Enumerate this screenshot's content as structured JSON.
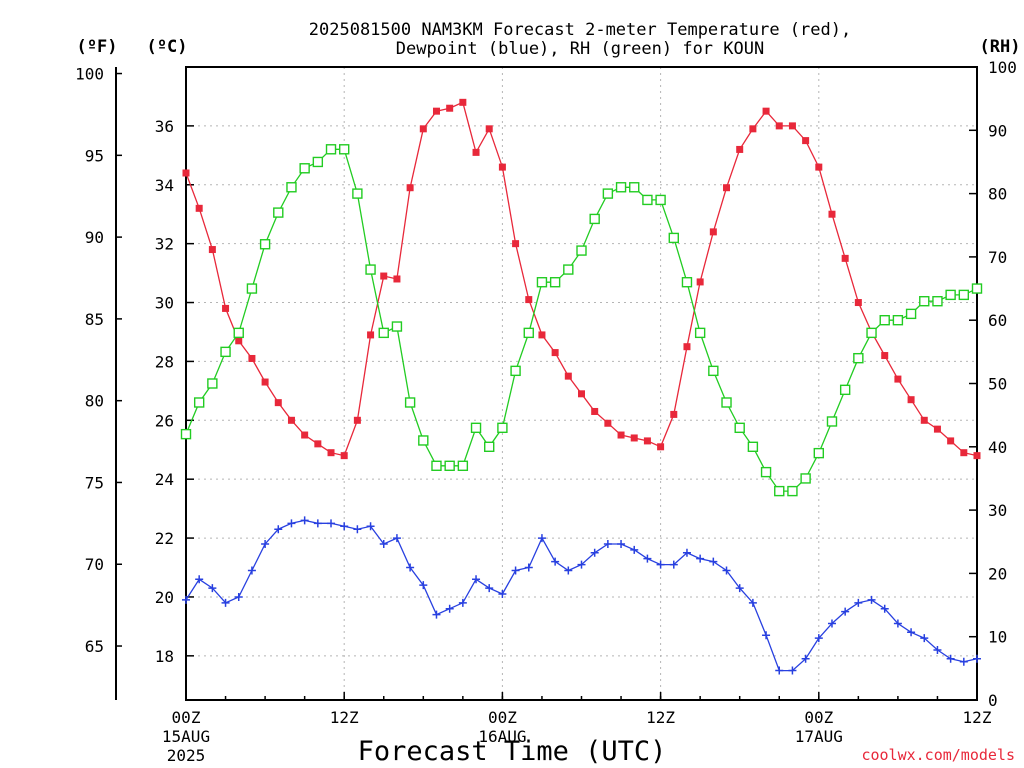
{
  "chart_data": {
    "type": "line",
    "title": "2025081500 NAM3KM Forecast 2-meter Temperature (red),",
    "subtitle": "Dewpoint (blue), RH (green) for KOUN",
    "xlabel": "Forecast Time (UTC)",
    "credit": "coolwx.com/models",
    "units": {
      "fahrenheit": "(ºF)",
      "celsius": "(ºC)",
      "rh": "(RH)"
    },
    "x_range_hours": [
      0,
      60
    ],
    "x_ticks": [
      {
        "hour": 0,
        "label": "00Z",
        "sub": "15AUG",
        "sub2": "2025"
      },
      {
        "hour": 12,
        "label": "12Z",
        "sub": "",
        "sub2": ""
      },
      {
        "hour": 24,
        "label": "00Z",
        "sub": "16AUG",
        "sub2": ""
      },
      {
        "hour": 36,
        "label": "12Z",
        "sub": "",
        "sub2": ""
      },
      {
        "hour": 48,
        "label": "00Z",
        "sub": "17AUG",
        "sub2": ""
      },
      {
        "hour": 60,
        "label": "12Z",
        "sub": "",
        "sub2": ""
      }
    ],
    "celsius_axis": {
      "range": [
        16.5,
        38
      ],
      "ticks": [
        "18",
        "20",
        "22",
        "24",
        "26",
        "28",
        "30",
        "32",
        "34",
        "36"
      ]
    },
    "fahrenheit_axis": {
      "range": [
        61.7,
        100.4
      ],
      "ticks": [
        "65",
        "70",
        "75",
        "80",
        "85",
        "90",
        "95",
        "100"
      ]
    },
    "rh_axis": {
      "range": [
        0,
        100
      ],
      "ticks": [
        "0",
        "10",
        "20",
        "30",
        "40",
        "50",
        "60",
        "70",
        "80",
        "90",
        "100"
      ]
    },
    "series": [
      {
        "name": "Temperature (red)",
        "color": "#e8283a",
        "marker": "filled-square",
        "axis": "celsius",
        "values": [
          34.4,
          33.2,
          31.8,
          29.8,
          28.7,
          28.1,
          27.3,
          26.6,
          26.0,
          25.5,
          25.2,
          24.9,
          24.8,
          26.0,
          28.9,
          30.9,
          30.8,
          33.9,
          35.9,
          36.5,
          36.6,
          36.8,
          35.1,
          35.9,
          34.6,
          32.0,
          30.1,
          28.9,
          28.3,
          27.5,
          26.9,
          26.3,
          25.9,
          25.5,
          25.4,
          25.3,
          25.1,
          26.2,
          28.5,
          30.7,
          32.4,
          33.9,
          35.2,
          35.9,
          36.5,
          36.0,
          36.0,
          35.5,
          34.6,
          33.0,
          31.5,
          30.0,
          29.0,
          28.2,
          27.4,
          26.7,
          26.0,
          25.7,
          25.3,
          24.9,
          24.8
        ]
      },
      {
        "name": "Dewpoint (blue)",
        "color": "#2840e0",
        "marker": "plus",
        "axis": "celsius",
        "values": [
          19.9,
          20.6,
          20.3,
          19.8,
          20.0,
          20.9,
          21.8,
          22.3,
          22.5,
          22.6,
          22.5,
          22.5,
          22.4,
          22.3,
          22.4,
          21.8,
          22.0,
          21.0,
          20.4,
          19.4,
          19.6,
          19.8,
          20.6,
          20.3,
          20.1,
          20.9,
          21.0,
          22.0,
          21.2,
          20.9,
          21.1,
          21.5,
          21.8,
          21.8,
          21.6,
          21.3,
          21.1,
          21.1,
          21.5,
          21.3,
          21.2,
          20.9,
          20.3,
          19.8,
          18.7,
          17.5,
          17.5,
          17.9,
          18.6,
          19.1,
          19.5,
          19.8,
          19.9,
          19.6,
          19.1,
          18.8,
          18.6,
          18.2,
          17.9,
          17.8,
          17.9
        ]
      },
      {
        "name": "RH (green)",
        "color": "#22cc22",
        "marker": "open-square",
        "axis": "rh",
        "values": [
          42,
          47,
          50,
          55,
          58,
          65,
          72,
          77,
          81,
          84,
          85,
          87,
          87,
          80,
          68,
          58,
          59,
          47,
          41,
          37,
          37,
          37,
          43,
          40,
          43,
          52,
          58,
          66,
          66,
          68,
          71,
          76,
          80,
          81,
          81,
          79,
          79,
          73,
          66,
          58,
          52,
          47,
          43,
          40,
          36,
          33,
          33,
          35,
          39,
          44,
          49,
          54,
          58,
          60,
          60,
          61,
          63,
          63,
          64,
          64,
          65
        ]
      }
    ],
    "grid": true,
    "legend": "none (series described in title)"
  }
}
